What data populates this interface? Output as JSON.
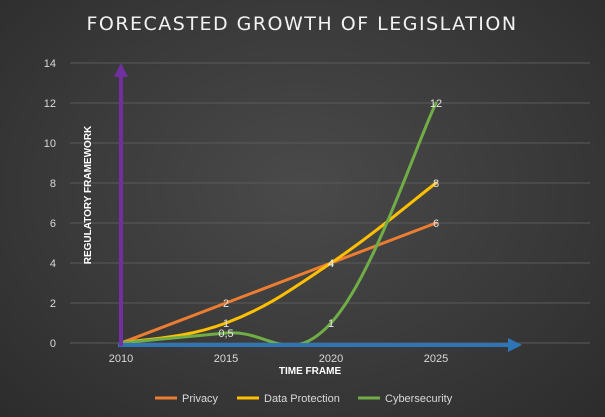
{
  "chart_data": {
    "type": "line",
    "title": "FORECASTED GROWTH OF LEGISLATION",
    "xlabel": "TIME FRAME",
    "ylabel": "REGULATORY FRAMEWORK",
    "x": [
      "2010",
      "2015",
      "2020",
      "2025"
    ],
    "yticks": [
      "0",
      "2",
      "4",
      "6",
      "8",
      "10",
      "12",
      "14"
    ],
    "ylim": [
      0,
      14
    ],
    "smooth": true,
    "grid": true,
    "legend_position": "bottom",
    "series": [
      {
        "name": "Privacy",
        "color": "#ed7d31",
        "values": [
          0,
          2,
          4,
          6
        ],
        "labels": [
          "",
          "2",
          "4",
          "6"
        ]
      },
      {
        "name": "Data Protection",
        "color": "#ffc000",
        "values": [
          0,
          1,
          4,
          8
        ],
        "labels": [
          "",
          "1",
          "4",
          "8"
        ]
      },
      {
        "name": "Cybersecurity",
        "color": "#70ad47",
        "values": [
          0,
          0.5,
          1,
          12
        ],
        "labels": [
          "",
          "0,5",
          "1",
          "12"
        ]
      }
    ],
    "axis_arrows": {
      "y_color": "#7030a0",
      "x_color": "#2e75b6"
    }
  }
}
